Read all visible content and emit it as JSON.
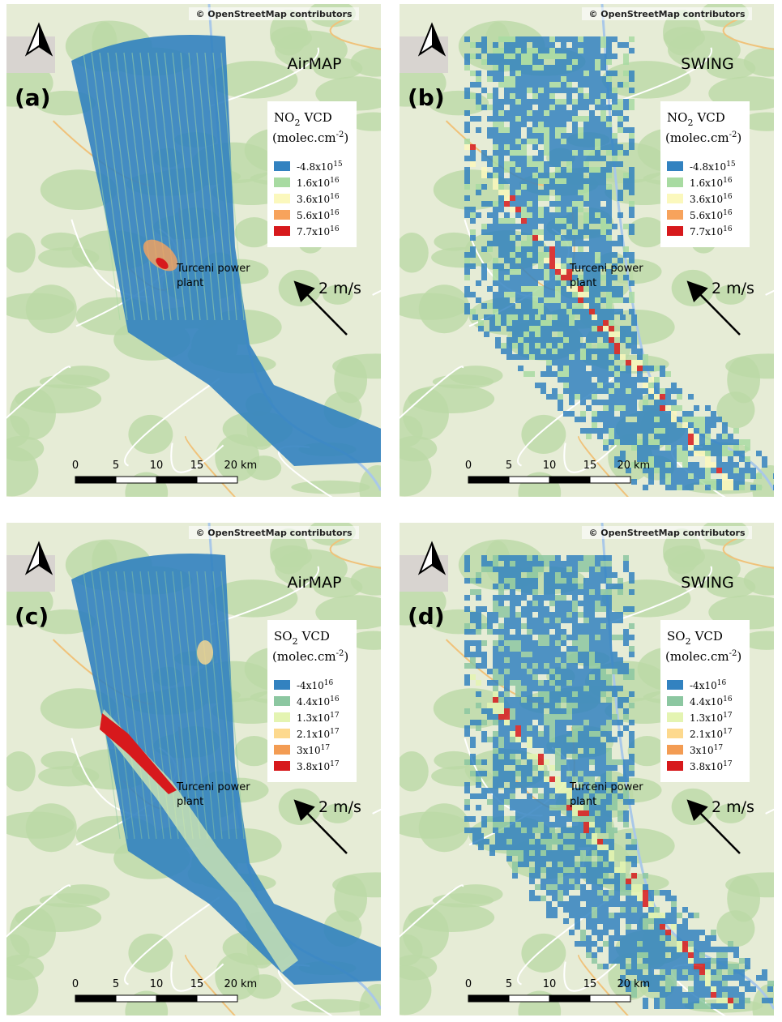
{
  "panels": [
    {
      "label": "(a)",
      "instrument": "AirMAP",
      "attribution": "© OpenStreetMap contributors",
      "style": "swath",
      "legend": {
        "species": {
          "base": "NO",
          "subscript": "2",
          "suffix": "VCD"
        },
        "units": {
          "base": "(molec.cm",
          "superscript": "-2",
          "close": ")"
        },
        "entries": [
          {
            "mantissa": "-4.8x10",
            "exponent": "15",
            "color": "#3282c0"
          },
          {
            "mantissa": "1.6x10",
            "exponent": "16",
            "color": "#a8dba2"
          },
          {
            "mantissa": "3.6x10",
            "exponent": "16",
            "color": "#fbf8bd"
          },
          {
            "mantissa": "5.6x10",
            "exponent": "16",
            "color": "#f7a35c"
          },
          {
            "mantissa": "7.7x10",
            "exponent": "16",
            "color": "#d7191c"
          }
        ]
      },
      "annotation": [
        "Turceni power",
        "plant"
      ],
      "wind": "2 m/s",
      "scale": {
        "ticks": [
          0,
          5,
          10,
          15,
          20
        ],
        "unit": "km"
      }
    },
    {
      "label": "(b)",
      "instrument": "SWING",
      "attribution": "© OpenStreetMap contributors",
      "style": "pixels",
      "legend": {
        "species": {
          "base": "NO",
          "subscript": "2",
          "suffix": "VCD"
        },
        "units": {
          "base": "(molec.cm",
          "superscript": "-2",
          "close": ")"
        },
        "entries": [
          {
            "mantissa": "-4.8x10",
            "exponent": "15",
            "color": "#3282c0"
          },
          {
            "mantissa": "1.6x10",
            "exponent": "16",
            "color": "#a8dba2"
          },
          {
            "mantissa": "3.6x10",
            "exponent": "16",
            "color": "#fbf8bd"
          },
          {
            "mantissa": "5.6x10",
            "exponent": "16",
            "color": "#f7a35c"
          },
          {
            "mantissa": "7.7x10",
            "exponent": "16",
            "color": "#d7191c"
          }
        ]
      },
      "annotation": [
        "Turceni power",
        "plant"
      ],
      "wind": "2 m/s",
      "scale": {
        "ticks": [
          0,
          5,
          10,
          15,
          20
        ],
        "unit": "km"
      }
    },
    {
      "label": "(c)",
      "instrument": "AirMAP",
      "attribution": "© OpenStreetMap contributors",
      "style": "swath",
      "legend": {
        "species": {
          "base": "SO",
          "subscript": "2",
          "suffix": "VCD"
        },
        "units": {
          "base": "(molec.cm",
          "superscript": "-2",
          "close": ")"
        },
        "entries": [
          {
            "mantissa": "-4x10",
            "exponent": "16",
            "color": "#3282c0"
          },
          {
            "mantissa": "4.4x10",
            "exponent": "16",
            "color": "#8cc7a1"
          },
          {
            "mantissa": "1.3x10",
            "exponent": "17",
            "color": "#e4f4b2"
          },
          {
            "mantissa": "2.1x10",
            "exponent": "17",
            "color": "#fdd98e"
          },
          {
            "mantissa": "3x10",
            "exponent": "17",
            "color": "#f39c53"
          },
          {
            "mantissa": "3.8x10",
            "exponent": "17",
            "color": "#d7191c"
          }
        ]
      },
      "annotation": [
        "Turceni power",
        "plant"
      ],
      "wind": "2 m/s",
      "scale": {
        "ticks": [
          0,
          5,
          10,
          15,
          20
        ],
        "unit": "km"
      }
    },
    {
      "label": "(d)",
      "instrument": "SWING",
      "attribution": "© OpenStreetMap contributors",
      "style": "pixels",
      "legend": {
        "species": {
          "base": "SO",
          "subscript": "2",
          "suffix": "VCD"
        },
        "units": {
          "base": "(molec.cm",
          "superscript": "-2",
          "close": ")"
        },
        "entries": [
          {
            "mantissa": "-4x10",
            "exponent": "16",
            "color": "#3282c0"
          },
          {
            "mantissa": "4.4x10",
            "exponent": "16",
            "color": "#8cc7a1"
          },
          {
            "mantissa": "1.3x10",
            "exponent": "17",
            "color": "#e4f4b2"
          },
          {
            "mantissa": "2.1x10",
            "exponent": "17",
            "color": "#fdd98e"
          },
          {
            "mantissa": "3x10",
            "exponent": "17",
            "color": "#f39c53"
          },
          {
            "mantissa": "3.8x10",
            "exponent": "17",
            "color": "#d7191c"
          }
        ]
      },
      "annotation": [
        "Turceni power",
        "plant"
      ],
      "wind": "2 m/s",
      "scale": {
        "ticks": [
          0,
          5,
          10,
          15,
          20
        ],
        "unit": "km"
      }
    }
  ]
}
